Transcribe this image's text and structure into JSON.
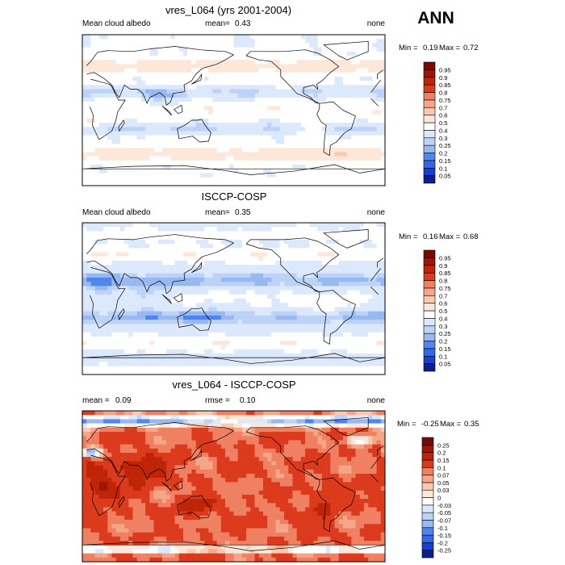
{
  "season": "ANN",
  "colors": {
    "abs": [
      "#0d1e8c",
      "#1a3fd0",
      "#2f6ae8",
      "#4f86ee",
      "#729fef",
      "#98b8f2",
      "#bcd2f6",
      "#dce8fb",
      "#ffffff",
      "#fde7d9",
      "#f9c9b0",
      "#f5a689",
      "#f08062",
      "#e95a3a",
      "#dc3a1c",
      "#c02407",
      "#9c1605",
      "#780a02"
    ],
    "diff": [
      "#0d1e8c",
      "#1a3fd0",
      "#2f6ae8",
      "#4f86ee",
      "#729fef",
      "#98b8f2",
      "#bcd2f6",
      "#dce8fb",
      "#ffffff",
      "#fde7d9",
      "#f9c9b0",
      "#f5a689",
      "#f08062",
      "#e95a3a",
      "#dc3a1c",
      "#c02407",
      "#9c1605",
      "#780a02"
    ]
  },
  "chart_data": [
    {
      "type": "heatmap",
      "title": "vres_L064 (yrs 2001-2004)",
      "left_label": "Mean cloud albedo",
      "mid_label": "mean=",
      "mid_value": "0.43",
      "right_label": "none",
      "minmax": {
        "min_label": "Min =",
        "min": "0.19",
        "max_label": "Max =",
        "max": "0.72"
      },
      "colorbar_levels": [
        "0.05",
        "0.1",
        "0.15",
        "0.2",
        "0.25",
        "0.3",
        "0.4",
        "0.5",
        "0.6",
        "0.7",
        "0.75",
        "0.8",
        "0.85",
        "0.9",
        "0.95"
      ],
      "value_range": [
        0.19,
        0.72
      ],
      "regime": "abs_model"
    },
    {
      "type": "heatmap",
      "title": "ISCCP-COSP",
      "left_label": "Mean cloud albedo",
      "mid_label": "mean=",
      "mid_value": "0.35",
      "right_label": "none",
      "minmax": {
        "min_label": "Min =",
        "min": "0.16",
        "max_label": "Max =",
        "max": "0.68"
      },
      "colorbar_levels": [
        "0.05",
        "0.1",
        "0.15",
        "0.2",
        "0.25",
        "0.3",
        "0.4",
        "0.5",
        "0.6",
        "0.7",
        "0.75",
        "0.8",
        "0.85",
        "0.9",
        "0.95"
      ],
      "value_range": [
        0.16,
        0.68
      ],
      "regime": "abs_obs"
    },
    {
      "type": "heatmap",
      "title": "vres_L064 - ISCCP-COSP",
      "left_label": "mean =",
      "left_value": "0.09",
      "mid_label": "rmse =",
      "mid_value": "0.10",
      "right_label": "none",
      "minmax": {
        "min_label": "Min =",
        "min": "-0.25",
        "max_label": "Max =",
        "max": "0.35"
      },
      "colorbar_levels": [
        "-0.25",
        "-0.2",
        "-0.15",
        "-0.1",
        "-0.07",
        "-0.05",
        "-0.03",
        "0",
        "0.03",
        "0.05",
        "0.07",
        "0.1",
        "0.15",
        "0.2",
        "0.25"
      ],
      "value_range": [
        -0.25,
        0.35
      ],
      "regime": "diff"
    }
  ]
}
